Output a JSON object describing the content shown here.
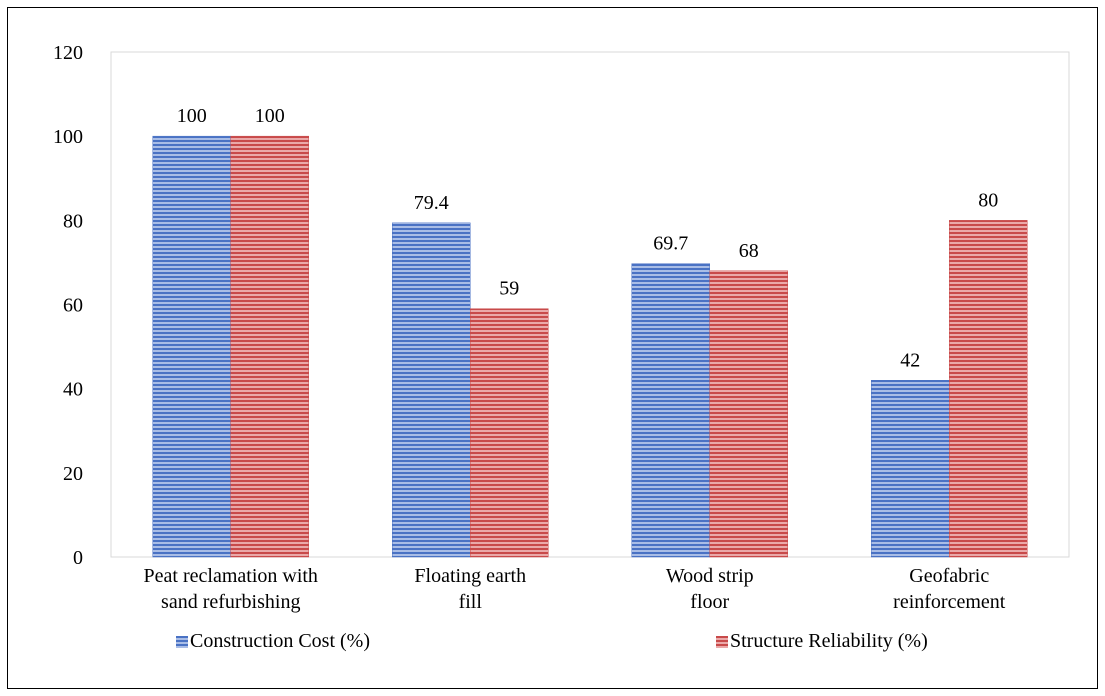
{
  "chart_data": {
    "type": "bar",
    "categories": [
      [
        "Peat reclamation with",
        "sand refurbishing"
      ],
      [
        "Floating earth",
        "fill"
      ],
      [
        "Wood strip",
        "floor"
      ],
      [
        "Geofabric",
        "reinforcement"
      ]
    ],
    "series": [
      {
        "name": "Construction Cost (%)",
        "values": [
          100,
          79.4,
          69.7,
          42
        ],
        "labels": [
          "100",
          "79.4",
          "69.7",
          "42"
        ],
        "color": "#4a72c4",
        "stripe": "#a9bde6"
      },
      {
        "name": "Structure Reliability (%)",
        "values": [
          100,
          59,
          68,
          80
        ],
        "labels": [
          "100",
          "59",
          "68",
          "80"
        ],
        "color": "#c84a4a",
        "stripe": "#eaa9a9"
      }
    ],
    "ylim": [
      0,
      120
    ],
    "yticks": [
      "0",
      "20",
      "40",
      "60",
      "80",
      "100",
      "120"
    ],
    "ytick_values": [
      0,
      20,
      40,
      60,
      80,
      100,
      120
    ],
    "grid": false,
    "legend_position": "bottom",
    "bar_pattern": "horizontal-stripes"
  }
}
